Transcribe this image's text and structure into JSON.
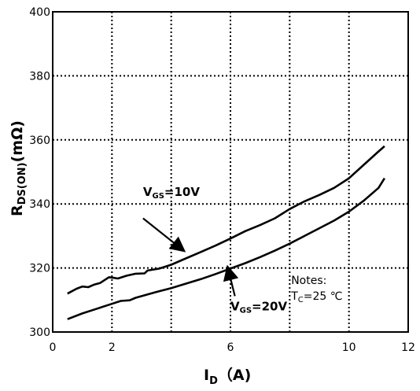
{
  "chart_data": {
    "type": "line",
    "xlim": [
      0,
      12
    ],
    "ylim": [
      300,
      400
    ],
    "x_ticks": [
      "0",
      "2",
      "6",
      "10",
      "12"
    ],
    "x_grid": [
      2,
      4,
      6,
      8,
      10
    ],
    "y_ticks": [
      "300",
      "320",
      "340",
      "360",
      "380",
      "400"
    ],
    "y_grid": [
      320,
      340,
      360,
      380
    ],
    "grid": true,
    "grid_style": "dotted",
    "xlabel": {
      "main": "I",
      "sub": "D",
      "unit": "（A)"
    },
    "ylabel": {
      "main": "R",
      "sub": "DS(ON)",
      "unit": "(mΩ)"
    },
    "series": [
      {
        "label_main": "V",
        "label_sub": "GS",
        "label_value": "=10V",
        "points": [
          [
            0.5,
            312
          ],
          [
            0.8,
            313.5
          ],
          [
            1.0,
            314.2
          ],
          [
            1.2,
            314
          ],
          [
            1.4,
            314.8
          ],
          [
            1.6,
            315.3
          ],
          [
            1.8,
            316.5
          ],
          [
            1.9,
            317.1
          ],
          [
            2.0,
            317
          ],
          [
            2.2,
            316.7
          ],
          [
            2.5,
            317.6
          ],
          [
            2.8,
            318.2
          ],
          [
            3.1,
            318.3
          ],
          [
            3.2,
            319.2
          ],
          [
            3.6,
            319.8
          ],
          [
            4.0,
            321.0
          ],
          [
            4.4,
            322.6
          ],
          [
            5.0,
            325.0
          ],
          [
            5.5,
            327.0
          ],
          [
            6.0,
            329.2
          ],
          [
            6.5,
            331.5
          ],
          [
            7.0,
            333.4
          ],
          [
            7.5,
            335.5
          ],
          [
            8.0,
            338.4
          ],
          [
            8.5,
            340.8
          ],
          [
            9.0,
            342.8
          ],
          [
            9.5,
            345.0
          ],
          [
            10.0,
            348.0
          ],
          [
            10.5,
            352.2
          ],
          [
            11.0,
            356.4
          ],
          [
            11.2,
            358.0
          ]
        ]
      },
      {
        "label_main": "V",
        "label_sub": "GS",
        "label_value": "=20V",
        "points": [
          [
            0.5,
            304
          ],
          [
            1.0,
            305.8
          ],
          [
            1.5,
            307.3
          ],
          [
            2.0,
            308.8
          ],
          [
            2.3,
            309.7
          ],
          [
            2.6,
            309.9
          ],
          [
            2.8,
            310.7
          ],
          [
            3.5,
            312.5
          ],
          [
            4.0,
            313.7
          ],
          [
            4.5,
            315.1
          ],
          [
            5.0,
            316.5
          ],
          [
            5.5,
            318.1
          ],
          [
            6.0,
            319.8
          ],
          [
            6.5,
            321.5
          ],
          [
            7.0,
            323.4
          ],
          [
            7.5,
            325.4
          ],
          [
            8.0,
            327.6
          ],
          [
            8.5,
            330.0
          ],
          [
            9.0,
            332.4
          ],
          [
            9.5,
            334.8
          ],
          [
            10.0,
            337.6
          ],
          [
            10.5,
            341.0
          ],
          [
            11.0,
            345.0
          ],
          [
            11.2,
            348.0
          ]
        ]
      }
    ],
    "annotations": {
      "label_10v_pos": [
        3.05,
        342.5
      ],
      "arrow_10v": {
        "from": [
          3.05,
          335.5
        ],
        "to": [
          4.45,
          325.2
        ]
      },
      "label_20v_pos": [
        6.0,
        306.8
      ],
      "arrow_20v": {
        "from": [
          6.15,
          311.2
        ],
        "to": [
          5.9,
          320.5
        ]
      },
      "notes_pos": [
        8.05,
        315.0
      ],
      "notes_title": "Notes:",
      "notes_tc_main": "T",
      "notes_tc_sub": "C",
      "notes_tc_value": "=25 ℃"
    }
  }
}
